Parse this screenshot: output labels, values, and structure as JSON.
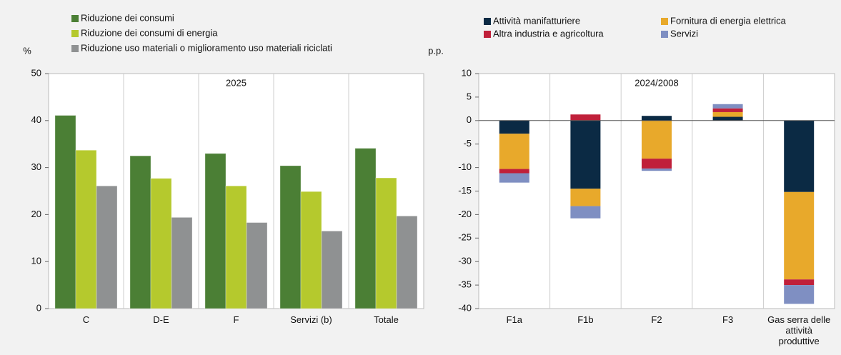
{
  "chart_data": [
    {
      "type": "bar",
      "title": "2025",
      "y_label": "%",
      "categories": [
        "C",
        "D-E",
        "F",
        "Servizi (b)",
        "Totale"
      ],
      "series": [
        {
          "name": "Riduzione dei consumi",
          "color": "#4b7f35",
          "values": [
            41.1,
            32.5,
            33.0,
            30.4,
            34.1
          ]
        },
        {
          "name": "Riduzione dei consumi di energia",
          "color": "#b5c92d",
          "values": [
            33.7,
            27.7,
            26.1,
            24.9,
            27.8
          ]
        },
        {
          "name": "Riduzione uso materiali o miglioramento uso materiali riciclati",
          "color": "#8f9192",
          "values": [
            26.1,
            19.4,
            18.3,
            16.5,
            19.7
          ]
        }
      ],
      "ylim": [
        0,
        50
      ],
      "yticks": [
        0,
        10,
        20,
        30,
        40,
        50
      ]
    },
    {
      "type": "stacked_bar",
      "title": "2024/2008",
      "y_label": "p.p.",
      "categories": [
        "F1a",
        "F1b",
        "F2",
        "F3",
        "Gas serra delle attività produttive"
      ],
      "series": [
        {
          "name": "Attività manifatturiere",
          "color": "#0b2a44",
          "values": [
            -2.8,
            -14.5,
            1.0,
            0.8,
            -15.2
          ]
        },
        {
          "name": "Fornitura di energia elettrica",
          "color": "#e8a92b",
          "values": [
            -7.5,
            -3.7,
            -8.1,
            1.0,
            -18.6
          ]
        },
        {
          "name": "Altra industria e agricoltura",
          "color": "#c0203a",
          "values": [
            -0.9,
            1.3,
            -2.1,
            0.8,
            -1.2
          ]
        },
        {
          "name": "Servizi",
          "color": "#7f8fc2",
          "values": [
            -2.0,
            -2.6,
            -0.5,
            0.9,
            -4.0
          ]
        }
      ],
      "ylim": [
        -40,
        10
      ],
      "yticks": [
        -40,
        -35,
        -30,
        -25,
        -20,
        -15,
        -10,
        -5,
        0,
        5,
        10
      ]
    }
  ]
}
